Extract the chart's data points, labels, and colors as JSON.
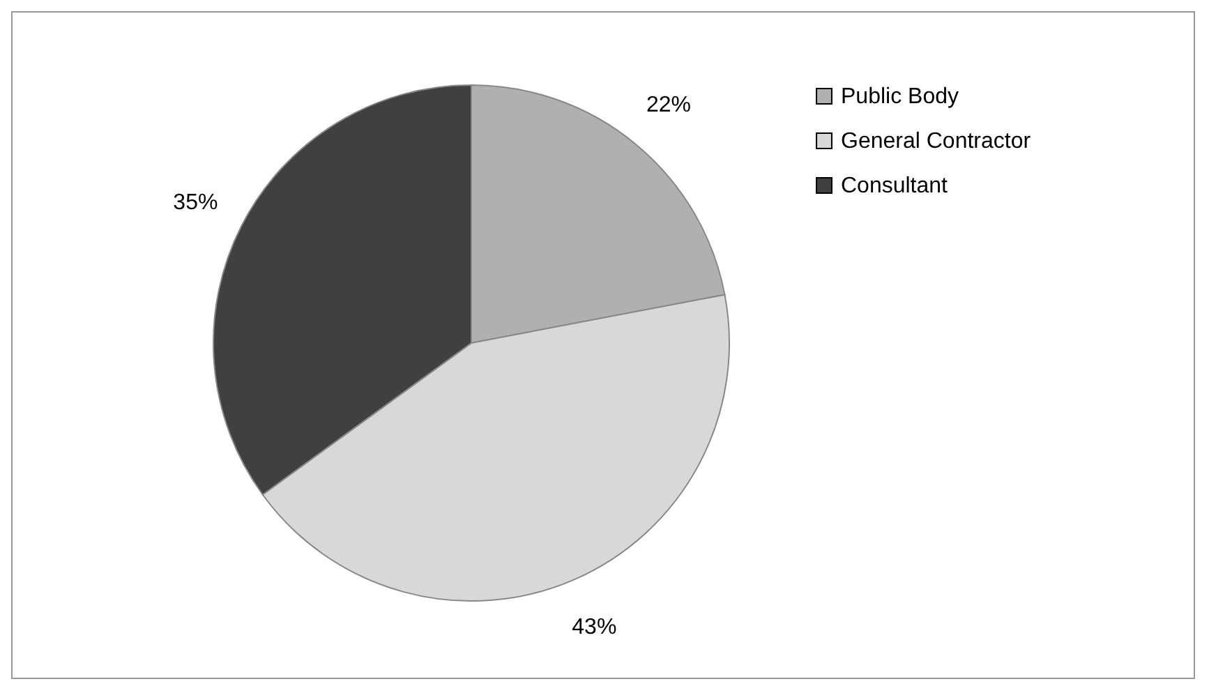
{
  "chart_data": {
    "type": "pie",
    "categories": [
      "Public Body",
      "General Contractor",
      "Consultant"
    ],
    "values": [
      22,
      43,
      35
    ],
    "colors": [
      "#b0b0b0",
      "#d8d8d8",
      "#404040"
    ],
    "value_labels": [
      "22%",
      "43%",
      "35%"
    ],
    "legend": "right"
  }
}
